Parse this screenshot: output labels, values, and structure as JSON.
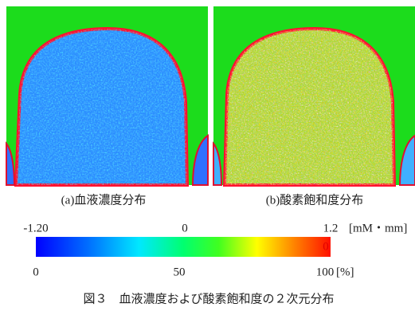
{
  "panels": [
    {
      "caption": "(a)血液濃度分布"
    },
    {
      "caption": "(b)酸素飽和度分布"
    }
  ],
  "colorbar": {
    "top_labels": [
      "-1.20",
      "0",
      "1.2"
    ],
    "top_unit": "[mM・mm]",
    "inner_label": "0",
    "bottom_labels": [
      "0",
      "50",
      "100"
    ],
    "bottom_unit": "[%]"
  },
  "caption": "図３　血液濃度および酸素飽和度の２次元分布"
}
